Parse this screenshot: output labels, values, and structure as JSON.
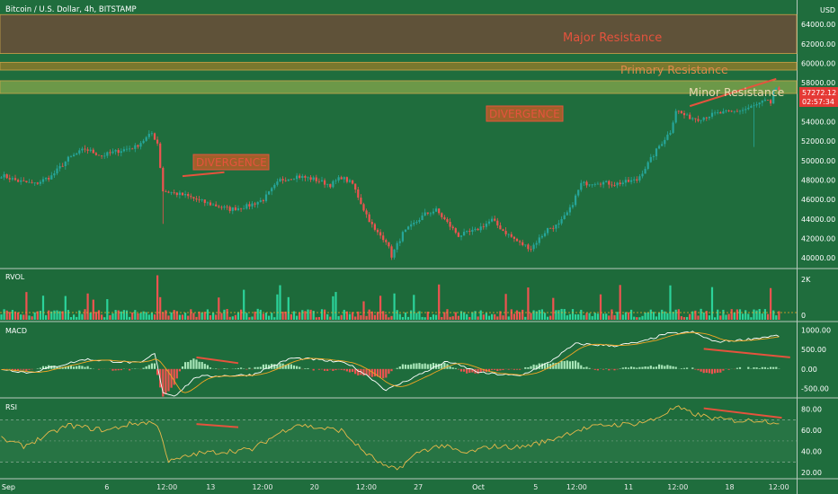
{
  "header": {
    "title": "Bitcoin / U.S. Dollar, 4h, BITSTAMP",
    "currency": "USD"
  },
  "colors": {
    "bg": "#1f6d3d",
    "up": "#26a69a",
    "down": "#ef5350",
    "zone_major": "#6b4e38",
    "zone_primary": "#8a7a2c",
    "zone_minor": "#7aa04a",
    "annotation": "#e5533d",
    "price_tag": "#e53935",
    "macd": "#ffffff",
    "signal": "#f5a623",
    "rsi": "#e8b84a"
  },
  "annotations": {
    "major_resistance": "Major Resistance",
    "primary_resistance": "Primary Resistance",
    "minor_resistance": "Minor Resistance",
    "divergence_1": "DIVERGENCE",
    "divergence_2": "DIVERGENCE"
  },
  "price_tag": {
    "price": "57272.12",
    "countdown": "02:57:34"
  },
  "panels": {
    "rvol": "RVOL",
    "macd": "MACD",
    "rsi": "RSI"
  },
  "chart_data": [
    {
      "type": "candlestick",
      "title": "Bitcoin / U.S. Dollar, 4h, BITSTAMP",
      "y_ticks": [
        "64000.00",
        "62000.00",
        "60000.00",
        "58000.00",
        "56000.00",
        "54000.00",
        "52000.00",
        "50000.00",
        "48000.00",
        "46000.00",
        "44000.00",
        "42000.00",
        "40000.00"
      ],
      "ylim": [
        39000,
        66500
      ],
      "x_ticks": [
        "Sep",
        "6",
        "12:00",
        "13",
        "12:00",
        "20",
        "12:00",
        "27",
        "Oct",
        "5",
        "12:00",
        "11",
        "12:00",
        "18",
        "12:00"
      ],
      "zones": [
        {
          "label": "Major Resistance",
          "from": 61000,
          "to": 65000
        },
        {
          "label": "Primary Resistance",
          "from": 59300,
          "to": 60100
        },
        {
          "label": "Minor Resistance",
          "from": 56900,
          "to": 58200
        }
      ],
      "anchors": [
        [
          0,
          48500
        ],
        [
          6,
          47900
        ],
        [
          12,
          47600
        ],
        [
          18,
          48400
        ],
        [
          24,
          50200
        ],
        [
          30,
          51200
        ],
        [
          36,
          50500
        ],
        [
          42,
          51000
        ],
        [
          48,
          51400
        ],
        [
          54,
          52800
        ],
        [
          56,
          51800
        ],
        [
          58,
          46900
        ],
        [
          66,
          46400
        ],
        [
          74,
          45600
        ],
        [
          82,
          45000
        ],
        [
          88,
          45300
        ],
        [
          94,
          46000
        ],
        [
          100,
          48000
        ],
        [
          106,
          48400
        ],
        [
          112,
          48100
        ],
        [
          118,
          47500
        ],
        [
          122,
          48300
        ],
        [
          126,
          47600
        ],
        [
          130,
          45000
        ],
        [
          134,
          42800
        ],
        [
          138,
          41800
        ],
        [
          140,
          40200
        ],
        [
          144,
          42500
        ],
        [
          148,
          43500
        ],
        [
          152,
          44500
        ],
        [
          156,
          44900
        ],
        [
          160,
          43600
        ],
        [
          164,
          42300
        ],
        [
          170,
          42800
        ],
        [
          176,
          43900
        ],
        [
          180,
          42800
        ],
        [
          186,
          41500
        ],
        [
          190,
          41000
        ],
        [
          196,
          43000
        ],
        [
          200,
          43400
        ],
        [
          204,
          45000
        ],
        [
          208,
          47600
        ],
        [
          214,
          47800
        ],
        [
          220,
          47600
        ],
        [
          228,
          48000
        ],
        [
          232,
          49700
        ],
        [
          236,
          51500
        ],
        [
          240,
          53000
        ],
        [
          242,
          55200
        ],
        [
          246,
          54500
        ],
        [
          250,
          54300
        ],
        [
          256,
          54800
        ],
        [
          262,
          55000
        ],
        [
          266,
          55200
        ],
        [
          270,
          55600
        ],
        [
          274,
          56100
        ],
        [
          276,
          55900
        ],
        [
          277,
          57272
        ]
      ],
      "volume": {
        "y_ticks": [
          "2K",
          "0"
        ],
        "ylim": [
          0,
          2400
        ]
      },
      "macd": {
        "y_ticks": [
          "1000.00",
          "500.00",
          "0.00",
          "-500.00"
        ],
        "ylim": [
          -700,
          1200
        ],
        "anchors": [
          [
            0,
            0
          ],
          [
            10,
            -100
          ],
          [
            30,
            250
          ],
          [
            50,
            150
          ],
          [
            55,
            400
          ],
          [
            58,
            -600
          ],
          [
            62,
            -700
          ],
          [
            70,
            -200
          ],
          [
            90,
            -150
          ],
          [
            104,
            280
          ],
          [
            112,
            250
          ],
          [
            124,
            150
          ],
          [
            132,
            -200
          ],
          [
            138,
            -550
          ],
          [
            146,
            -280
          ],
          [
            160,
            200
          ],
          [
            172,
            -100
          ],
          [
            186,
            -180
          ],
          [
            196,
            150
          ],
          [
            206,
            650
          ],
          [
            220,
            600
          ],
          [
            230,
            700
          ],
          [
            238,
            900
          ],
          [
            248,
            950
          ],
          [
            256,
            700
          ],
          [
            266,
            750
          ],
          [
            277,
            850
          ]
        ]
      },
      "rsi": {
        "y_ticks": [
          "80.00",
          "60.00",
          "40.00",
          "20.00"
        ],
        "ylim": [
          15,
          90
        ],
        "bands": [
          70,
          30
        ],
        "anchors": [
          [
            0,
            52
          ],
          [
            8,
            45
          ],
          [
            16,
            55
          ],
          [
            24,
            65
          ],
          [
            32,
            62
          ],
          [
            38,
            60
          ],
          [
            46,
            66
          ],
          [
            54,
            68
          ],
          [
            57,
            60
          ],
          [
            60,
            30
          ],
          [
            70,
            38
          ],
          [
            80,
            40
          ],
          [
            90,
            42
          ],
          [
            100,
            58
          ],
          [
            106,
            66
          ],
          [
            112,
            63
          ],
          [
            122,
            60
          ],
          [
            130,
            40
          ],
          [
            138,
            25
          ],
          [
            142,
            23
          ],
          [
            150,
            40
          ],
          [
            158,
            46
          ],
          [
            166,
            38
          ],
          [
            176,
            45
          ],
          [
            186,
            44
          ],
          [
            196,
            50
          ],
          [
            206,
            60
          ],
          [
            216,
            65
          ],
          [
            226,
            66
          ],
          [
            234,
            70
          ],
          [
            242,
            82
          ],
          [
            248,
            76
          ],
          [
            256,
            71
          ],
          [
            266,
            69
          ],
          [
            272,
            70
          ],
          [
            277,
            68
          ]
        ]
      },
      "divergence_lines": {
        "price": [
          [
            [
              65,
              48400
            ],
            [
              80,
              48800
            ]
          ],
          [
            [
              247,
              55600
            ],
            [
              278,
              58400
            ]
          ]
        ],
        "macd": [
          [
            [
              70,
              300
            ],
            [
              85,
              150
            ]
          ],
          [
            [
              252,
              520
            ],
            [
              283,
              300
            ]
          ]
        ],
        "rsi": [
          [
            [
              70,
              66
            ],
            [
              85,
              63
            ]
          ],
          [
            [
              252,
              81
            ],
            [
              280,
              72
            ]
          ]
        ]
      }
    }
  ]
}
